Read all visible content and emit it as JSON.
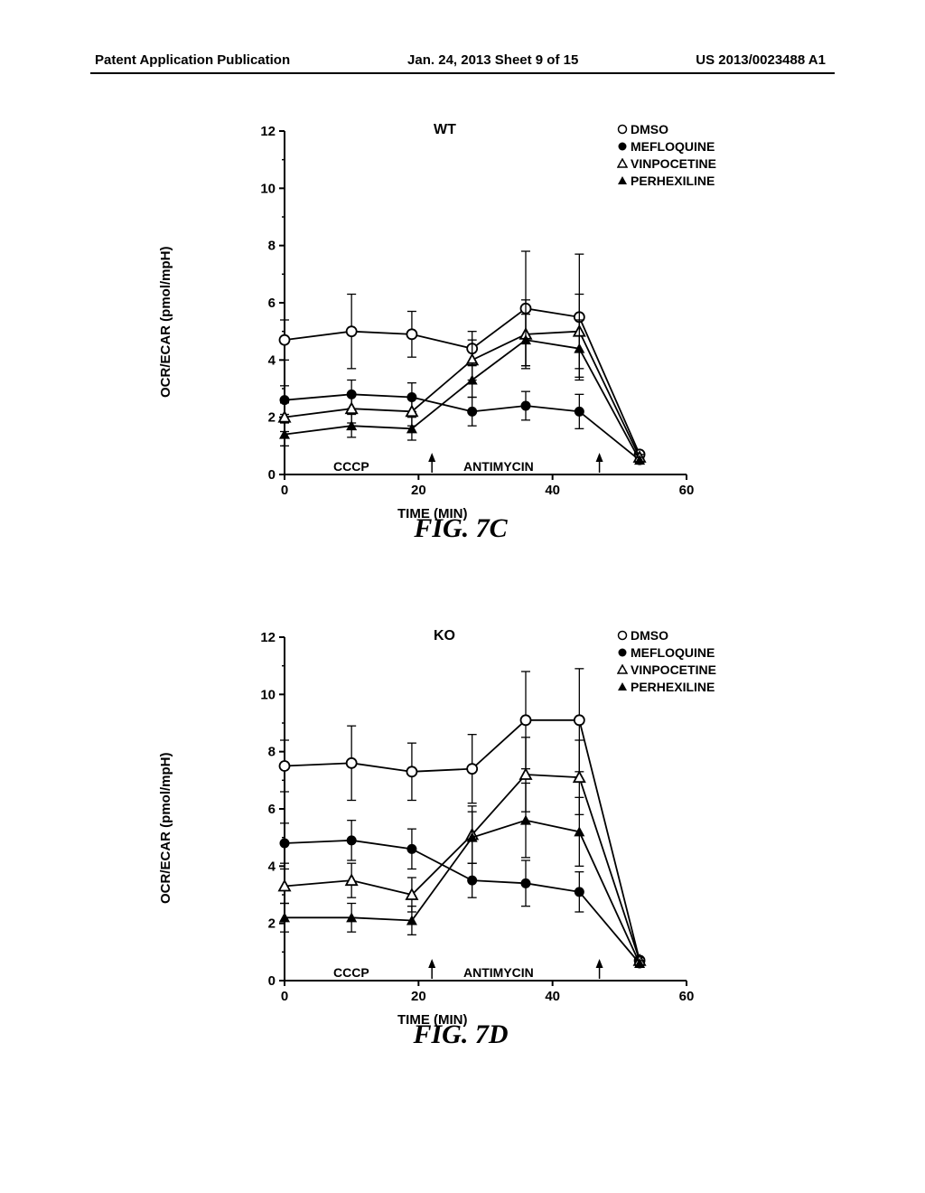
{
  "page_header": {
    "left": "Patent Application Publication",
    "center": "Jan. 24, 2013  Sheet 9 of 15",
    "right": "US 2013/0023488 A1"
  },
  "legend": {
    "items": [
      {
        "label": "DMSO",
        "marker": "circle-open"
      },
      {
        "label": "MEFLOQUINE",
        "marker": "circle-filled"
      },
      {
        "label": "VINPOCETINE",
        "marker": "triangle-open"
      },
      {
        "label": "PERHEXILINE",
        "marker": "triangle-filled"
      }
    ]
  },
  "chart_common": {
    "ylabel": "OCR/ECAR (pmol/mpH)",
    "xlabel": "TIME (MIN)",
    "ylim": [
      0,
      12
    ],
    "ytick_step": 2,
    "xlim": [
      0,
      60
    ],
    "xtick_step": 20,
    "background_color": "#ffffff",
    "axis_color": "#000000",
    "line_color": "#000000",
    "font_weight": "bold",
    "injection_labels": [
      {
        "label": "CCCP",
        "x": 22
      },
      {
        "label": "ANTIMYCIN",
        "x": 47
      }
    ]
  },
  "chart_wt": {
    "title": "WT",
    "fig_label": "FIG.   7C",
    "x": [
      0,
      10,
      19,
      28,
      36,
      44,
      53
    ],
    "series": {
      "DMSO": {
        "y": [
          4.7,
          5.0,
          4.9,
          4.4,
          5.8,
          5.5,
          0.7
        ],
        "err": [
          0.7,
          1.3,
          0.8,
          0.6,
          2.0,
          2.2,
          0.1
        ],
        "marker": "circle-open"
      },
      "MEFLOQUINE": {
        "y": [
          2.6,
          2.8,
          2.7,
          2.2,
          2.4,
          2.2,
          0.5
        ],
        "err": [
          0.5,
          0.5,
          0.5,
          0.5,
          0.5,
          0.6,
          0.1
        ],
        "marker": "circle-filled"
      },
      "VINPOCETINE": {
        "y": [
          2.0,
          2.3,
          2.2,
          4.0,
          4.9,
          5.0,
          0.6
        ],
        "err": [
          0.5,
          0.5,
          0.5,
          0.7,
          1.2,
          1.3,
          0.1
        ],
        "marker": "triangle-open"
      },
      "PERHEXILINE": {
        "y": [
          1.4,
          1.7,
          1.6,
          3.3,
          4.7,
          4.4,
          0.5
        ],
        "err": [
          0.4,
          0.4,
          0.4,
          0.6,
          0.9,
          1.0,
          0.1
        ],
        "marker": "triangle-filled"
      }
    }
  },
  "chart_ko": {
    "title": "KO",
    "fig_label": "FIG.   7D",
    "x": [
      0,
      10,
      19,
      28,
      36,
      44,
      53
    ],
    "series": {
      "DMSO": {
        "y": [
          7.5,
          7.6,
          7.3,
          7.4,
          9.1,
          9.1,
          0.7
        ],
        "err": [
          0.9,
          1.3,
          1.0,
          1.2,
          1.7,
          1.8,
          0.1
        ],
        "marker": "circle-open"
      },
      "MEFLOQUINE": {
        "y": [
          4.8,
          4.9,
          4.6,
          3.5,
          3.4,
          3.1,
          0.6
        ],
        "err": [
          0.7,
          0.7,
          0.7,
          0.6,
          0.8,
          0.7,
          0.1
        ],
        "marker": "circle-filled"
      },
      "VINPOCETINE": {
        "y": [
          3.3,
          3.5,
          3.0,
          5.1,
          7.2,
          7.1,
          0.7
        ],
        "err": [
          0.6,
          0.6,
          0.6,
          1.0,
          1.3,
          1.3,
          0.1
        ],
        "marker": "triangle-open"
      },
      "PERHEXILINE": {
        "y": [
          2.2,
          2.2,
          2.1,
          5.0,
          5.6,
          5.2,
          0.6
        ],
        "err": [
          0.5,
          0.5,
          0.5,
          0.9,
          1.3,
          1.2,
          0.1
        ],
        "marker": "triangle-filled"
      }
    }
  }
}
